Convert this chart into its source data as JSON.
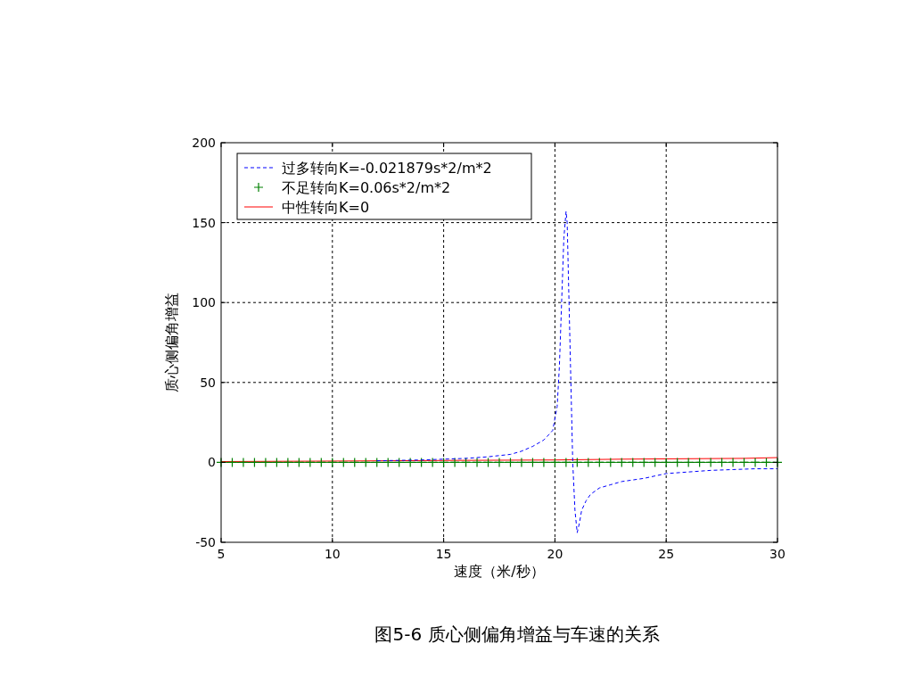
{
  "chart_data": {
    "type": "line",
    "title": "图5-6 质心侧偏角增益与车速的关系",
    "xlabel": "速度（米/秒）",
    "ylabel": "质心侧偏角增益",
    "xlim": [
      5,
      30
    ],
    "xticks": [
      5,
      10,
      15,
      20,
      25,
      30
    ],
    "ylim": [
      -50,
      200
    ],
    "yticks": [
      -50,
      0,
      50,
      100,
      150,
      200
    ],
    "grid": true,
    "legend": "top left",
    "series": [
      {
        "name": "过多转向K=-0.021879s*2/m*2",
        "color": "#0000ff",
        "line_style": "dashed",
        "marker": "none",
        "x": [
          12,
          14,
          15,
          16,
          17,
          18,
          18.5,
          19,
          19.5,
          19.9,
          20.1,
          20.2,
          20.3,
          20.4,
          20.5,
          20.55,
          20.6,
          20.7,
          20.8,
          20.9,
          21,
          21.1,
          21.2,
          21.4,
          21.6,
          22,
          22.5,
          23,
          24,
          25,
          26,
          27,
          28,
          29,
          30
        ],
        "values": [
          1,
          1.5,
          2,
          2.5,
          3.5,
          5,
          7,
          10,
          14,
          20,
          35,
          60,
          100,
          140,
          157,
          150,
          120,
          60,
          0,
          -30,
          -44,
          -38,
          -30,
          -24,
          -20,
          -16,
          -14,
          -12,
          -10,
          -7,
          -6,
          -5,
          -4.5,
          -4,
          -4
        ]
      },
      {
        "name": "不足转向K=0.06s*2/m*2",
        "color": "#008000",
        "line_style": "solid",
        "marker": "cross",
        "x": [
          5,
          5.5,
          6,
          6.5,
          7,
          7.5,
          8,
          8.5,
          9,
          9.5,
          10,
          10.5,
          11,
          11.5,
          12,
          12.5,
          13,
          13.5,
          14,
          14.5,
          15,
          15.5,
          16,
          16.5,
          17,
          17.5,
          18,
          18.5,
          19,
          19.5,
          20,
          20.5,
          21,
          21.5,
          22,
          22.5,
          23,
          23.5,
          24,
          24.5,
          25,
          25.5,
          26,
          26.5,
          27,
          27.5,
          28,
          28.5,
          29,
          29.5,
          30
        ],
        "values": [
          0,
          0,
          0,
          0,
          0,
          0,
          0,
          0,
          0,
          0,
          0,
          0,
          0,
          0,
          0,
          0,
          0,
          0,
          0,
          0,
          0,
          0,
          0,
          0,
          0,
          0,
          0,
          0,
          0,
          0,
          0,
          0,
          0,
          0,
          0,
          0,
          0,
          0,
          0,
          0,
          0,
          0,
          0,
          0,
          0,
          0,
          0,
          0,
          0,
          0,
          0
        ]
      },
      {
        "name": "中性转向K=0",
        "color": "#ff0000",
        "line_style": "solid",
        "marker": "none",
        "x": [
          5,
          10,
          15,
          20,
          23,
          25,
          28.5,
          30
        ],
        "values": [
          0.5,
          0.8,
          1.2,
          1.5,
          2,
          2.2,
          2.5,
          3
        ]
      }
    ]
  }
}
